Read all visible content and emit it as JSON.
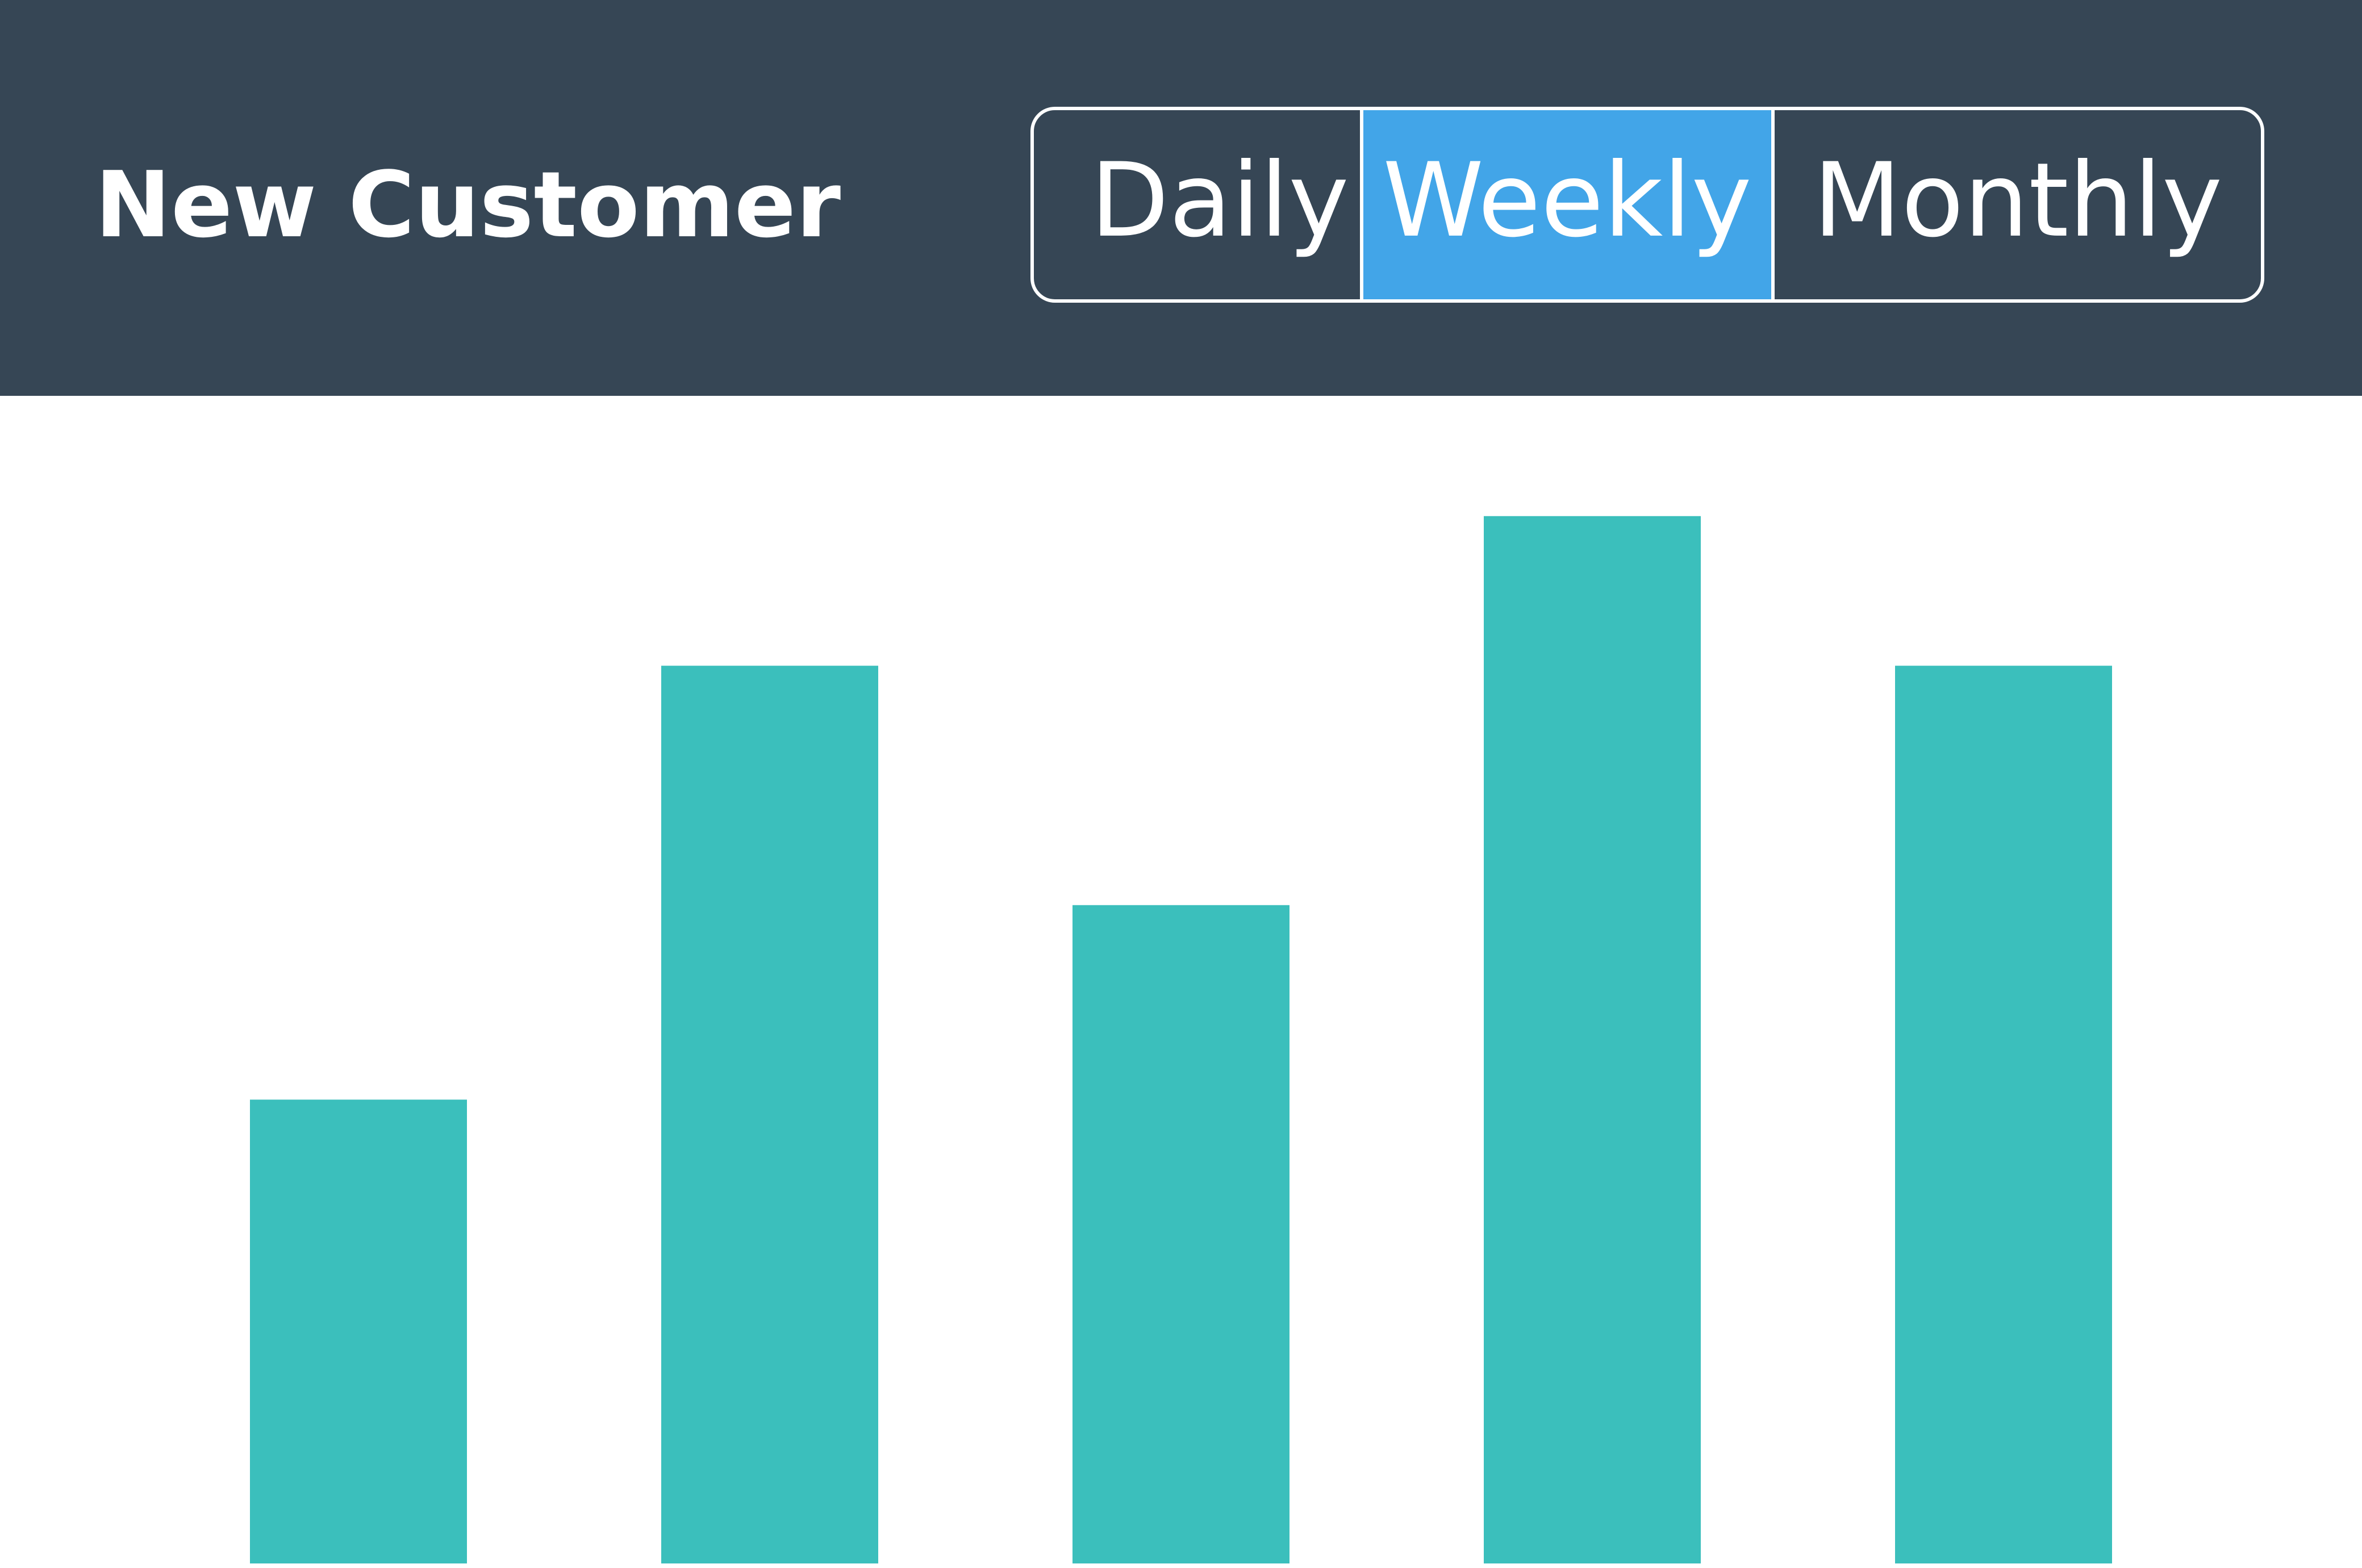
{
  "header": {
    "title": "New Customer",
    "tabs": [
      "Daily",
      "Weekly",
      "Monthly"
    ],
    "selected": 1
  },
  "chart_data": {
    "type": "bar",
    "values": [
      31,
      60,
      44,
      70,
      60
    ],
    "color": "#3bbfbc",
    "ylim": [
      0,
      78
    ]
  }
}
